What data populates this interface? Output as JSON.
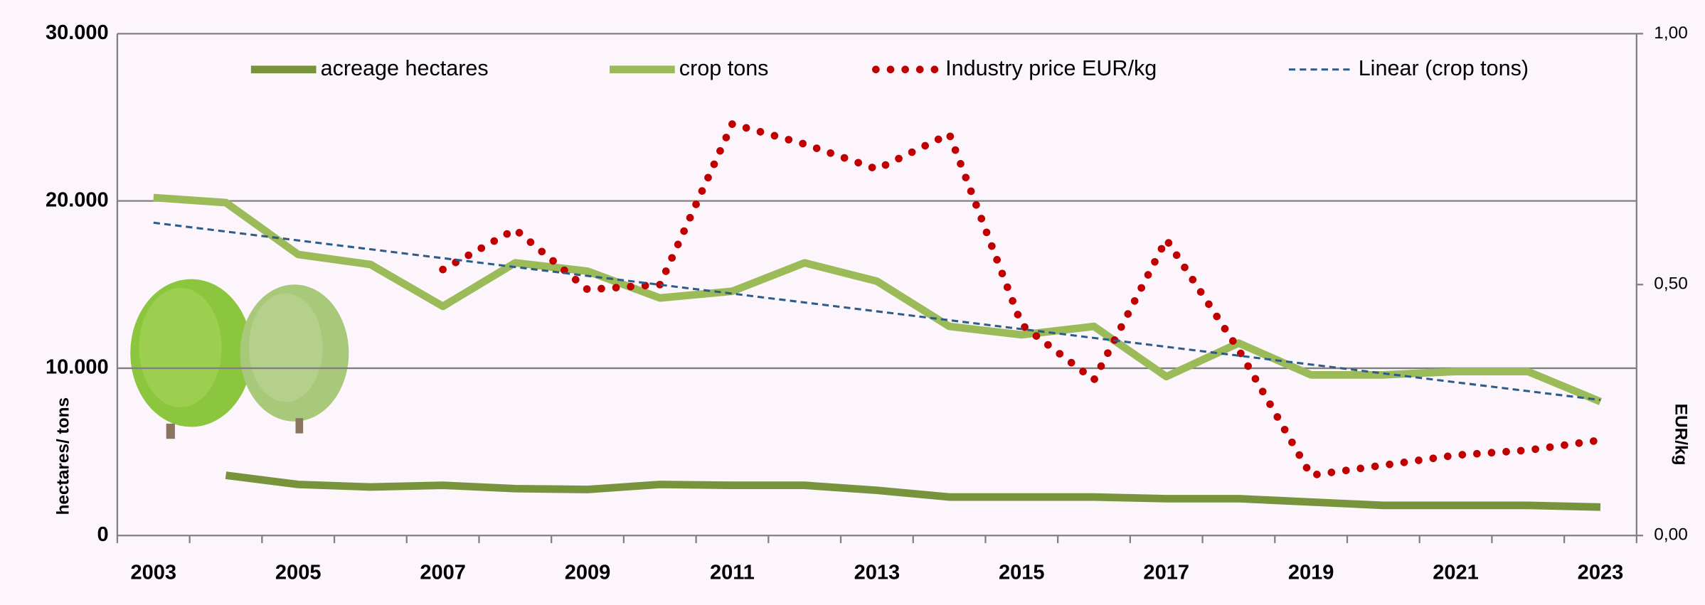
{
  "chart_data": {
    "type": "line",
    "categories": [
      "2003",
      null,
      "2005",
      null,
      "2007",
      null,
      "2009",
      null,
      "2011",
      null,
      "2013",
      null,
      "2015",
      null,
      "2017",
      null,
      "2019",
      null,
      "2021",
      null,
      "2023"
    ],
    "series": [
      {
        "name": "acreage hectares",
        "color": "#77933c",
        "style": "solid",
        "values": [
          null,
          3600,
          3050,
          2900,
          3000,
          2800,
          2750,
          3050,
          3000,
          3000,
          2700,
          2300,
          2300,
          2300,
          2200,
          2200,
          2000,
          1800,
          1800,
          1800,
          1700
        ]
      },
      {
        "name": "crop tons",
        "color": "#9bbb59",
        "style": "solid",
        "values": [
          20200,
          19900,
          16800,
          16200,
          13700,
          16300,
          15800,
          14200,
          14600,
          16300,
          15200,
          12500,
          12000,
          12500,
          9500,
          11500,
          9600,
          9600,
          9800,
          9800,
          8000
        ]
      },
      {
        "name": "Industry price EUR/kg",
        "color": "#c00000",
        "style": "dotted",
        "axis": "y2",
        "values": [
          null,
          null,
          null,
          null,
          0.53,
          0.61,
          0.49,
          0.5,
          0.82,
          0.78,
          0.73,
          0.8,
          0.42,
          0.31,
          0.59,
          0.37,
          0.12,
          0.14,
          0.16,
          0.17,
          0.19
        ]
      },
      {
        "name": "Linear (crop tons)",
        "color": "#2e5c8a",
        "style": "dashed",
        "values": [
          18700,
          18170,
          17640,
          17110,
          16580,
          16050,
          15520,
          14990,
          14460,
          13930,
          13400,
          12870,
          12340,
          11810,
          11280,
          10750,
          10220,
          9690,
          9160,
          8630,
          8100
        ]
      }
    ],
    "y_label": "hectares/ tons",
    "y2_label": "EUR/kg",
    "ylim": [
      0,
      30000
    ],
    "yticks": [
      0,
      {
        "value": 10000,
        "label": "10.000"
      },
      {
        "value": 20000,
        "label": "20.000"
      },
      {
        "value": 30000,
        "label": "30.000"
      }
    ],
    "y2lim": [
      0,
      1
    ],
    "y2ticks": [
      {
        "value": 0,
        "label": "0,00"
      },
      {
        "value": 0.5,
        "label": "0,50"
      },
      {
        "value": 1,
        "label": "1,00"
      }
    ],
    "grid": true,
    "legend": "top"
  }
}
